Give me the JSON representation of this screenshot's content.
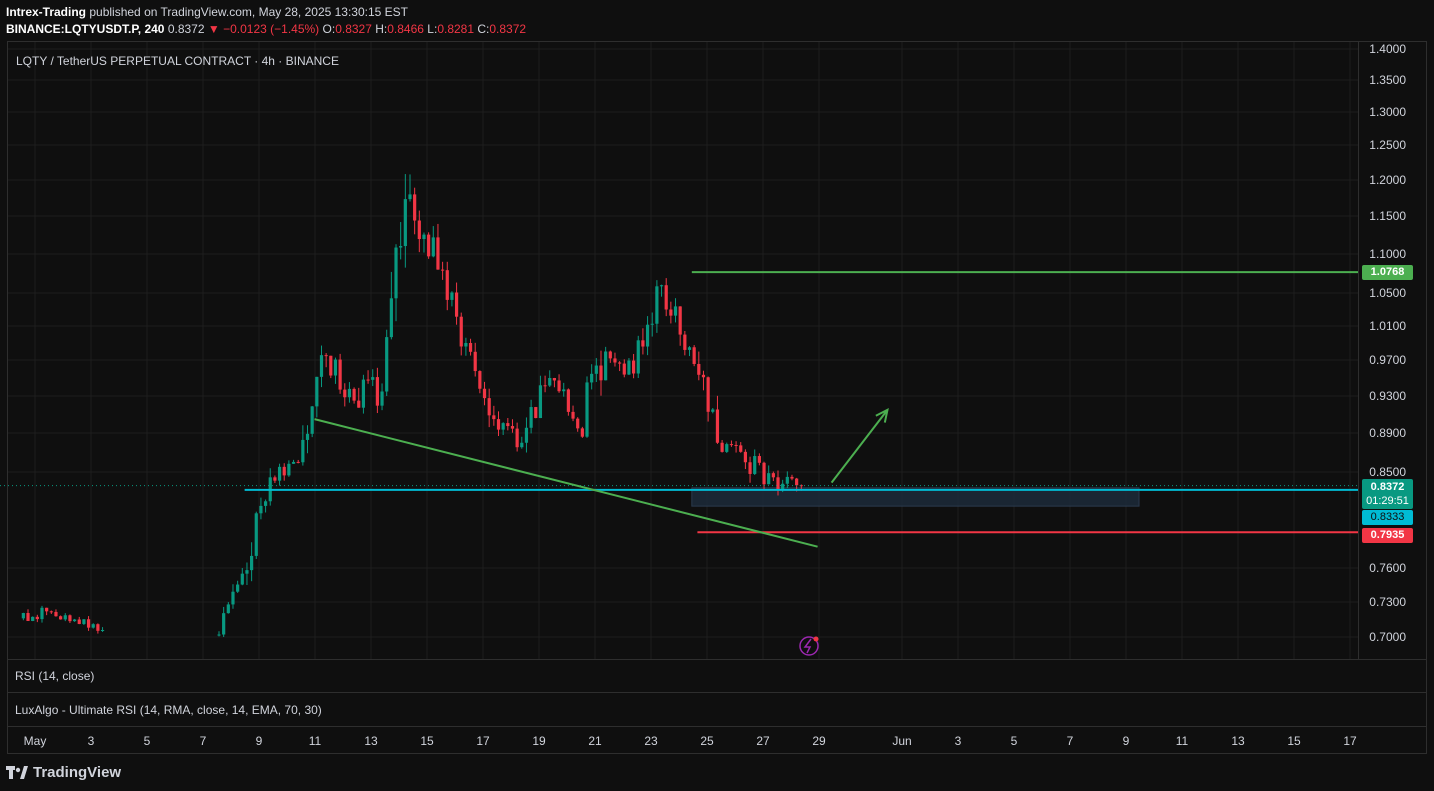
{
  "header": {
    "publisher": "Intrex-Trading",
    "published_text": "published on TradingView.com, May 28, 2025 13:30:15 EST",
    "symbol": "BINANCE:LQTYUSDT.P, 240",
    "last": "0.8372",
    "change_arrow": "▼",
    "change": "−0.0123 (−1.45%)",
    "o_label": "O:",
    "o": "0.8327",
    "h_label": "H:",
    "h": "0.8466",
    "l_label": "L:",
    "l": "0.8281",
    "c_label": "C:",
    "c": "0.8372"
  },
  "chart_title": "LQTY / TetherUS PERPETUAL CONTRACT · 4h · BINANCE",
  "panes": {
    "rsi": "RSI (14, close)",
    "luxalgo": "LuxAlgo - Ultimate RSI (14, RMA, close, 14, EMA, 70, 30)"
  },
  "badges": {
    "target": "1.0768",
    "current": "0.8372",
    "countdown": "01:29:51",
    "support": "0.8333",
    "stop": "0.7935"
  },
  "logo": "TradingView",
  "colors": {
    "up": "#089981",
    "down": "#f23645",
    "trendline": "#4caf50",
    "support": "#00bcd4",
    "target": "#4caf50",
    "stop": "#f23645"
  },
  "chart_data": {
    "type": "candlestick",
    "y_ticks": [
      "1.4000",
      "1.3500",
      "1.3000",
      "1.2500",
      "1.2000",
      "1.1500",
      "1.1000",
      "1.0500",
      "1.0100",
      "0.9700",
      "0.9300",
      "0.8900",
      "0.8500",
      "0.7600",
      "0.7300",
      "0.7000"
    ],
    "x_ticks": [
      "May",
      "3",
      "5",
      "7",
      "9",
      "11",
      "13",
      "15",
      "17",
      "19",
      "21",
      "23",
      "25",
      "27",
      "29",
      "Jun",
      "3",
      "5",
      "7",
      "9",
      "11",
      "13",
      "15",
      "17"
    ],
    "series": [
      {
        "date": "May 1",
        "open": 0.716,
        "high": 0.73,
        "low": 0.7,
        "close": 0.722
      },
      {
        "date": "May 2",
        "open": 0.722,
        "high": 0.734,
        "low": 0.712,
        "close": 0.715
      },
      {
        "date": "May 3",
        "open": 0.715,
        "high": 0.728,
        "low": 0.7,
        "close": 0.706
      },
      {
        "date": "May 8",
        "open": 0.702,
        "high": 0.76,
        "low": 0.7,
        "close": 0.755
      },
      {
        "date": "May 9",
        "open": 0.755,
        "high": 0.88,
        "low": 0.745,
        "close": 0.845
      },
      {
        "date": "May 10",
        "open": 0.845,
        "high": 0.875,
        "low": 0.822,
        "close": 0.86
      },
      {
        "date": "May 11",
        "open": 0.86,
        "high": 0.995,
        "low": 0.85,
        "close": 0.975
      },
      {
        "date": "May 12",
        "open": 0.975,
        "high": 0.99,
        "low": 0.905,
        "close": 0.925
      },
      {
        "date": "May 13",
        "open": 0.925,
        "high": 1.02,
        "low": 0.9,
        "close": 0.935
      },
      {
        "date": "May 14",
        "open": 0.935,
        "high": 1.225,
        "low": 0.93,
        "close": 1.18
      },
      {
        "date": "May 15",
        "open": 1.18,
        "high": 1.2,
        "low": 1.045,
        "close": 1.08
      },
      {
        "date": "May 16",
        "open": 1.08,
        "high": 1.09,
        "low": 0.975,
        "close": 0.99
      },
      {
        "date": "May 17",
        "open": 0.99,
        "high": 0.995,
        "low": 0.88,
        "close": 0.905
      },
      {
        "date": "May 18",
        "open": 0.905,
        "high": 0.935,
        "low": 0.86,
        "close": 0.88
      },
      {
        "date": "May 19",
        "open": 0.88,
        "high": 0.965,
        "low": 0.87,
        "close": 0.95
      },
      {
        "date": "May 20",
        "open": 0.95,
        "high": 0.96,
        "low": 0.875,
        "close": 0.895
      },
      {
        "date": "May 21",
        "open": 0.895,
        "high": 1.04,
        "low": 0.885,
        "close": 0.98
      },
      {
        "date": "May 22",
        "open": 0.98,
        "high": 1.0,
        "low": 0.93,
        "close": 0.955
      },
      {
        "date": "May 23",
        "open": 0.955,
        "high": 1.08,
        "low": 0.95,
        "close": 1.06
      },
      {
        "date": "May 24",
        "open": 1.06,
        "high": 1.075,
        "low": 0.965,
        "close": 0.985
      },
      {
        "date": "May 25",
        "open": 0.985,
        "high": 0.99,
        "low": 0.86,
        "close": 0.88
      },
      {
        "date": "May 26",
        "open": 0.88,
        "high": 0.895,
        "low": 0.83,
        "close": 0.86
      },
      {
        "date": "May 27",
        "open": 0.86,
        "high": 0.89,
        "low": 0.815,
        "close": 0.845
      },
      {
        "date": "May 28",
        "open": 0.845,
        "high": 0.885,
        "low": 0.828,
        "close": 0.837
      }
    ],
    "levels": {
      "target": 1.0768,
      "current": 0.8372,
      "support": 0.8333,
      "stop": 0.7935
    },
    "trendline": {
      "from": {
        "date": "May 11",
        "price": 0.905
      },
      "to": {
        "date": "May 29",
        "price": 0.78
      }
    },
    "arrow": {
      "from": {
        "date": "May 29.5",
        "price": 0.84
      },
      "to": {
        "date": "May 31.5",
        "price": 0.915
      }
    }
  }
}
